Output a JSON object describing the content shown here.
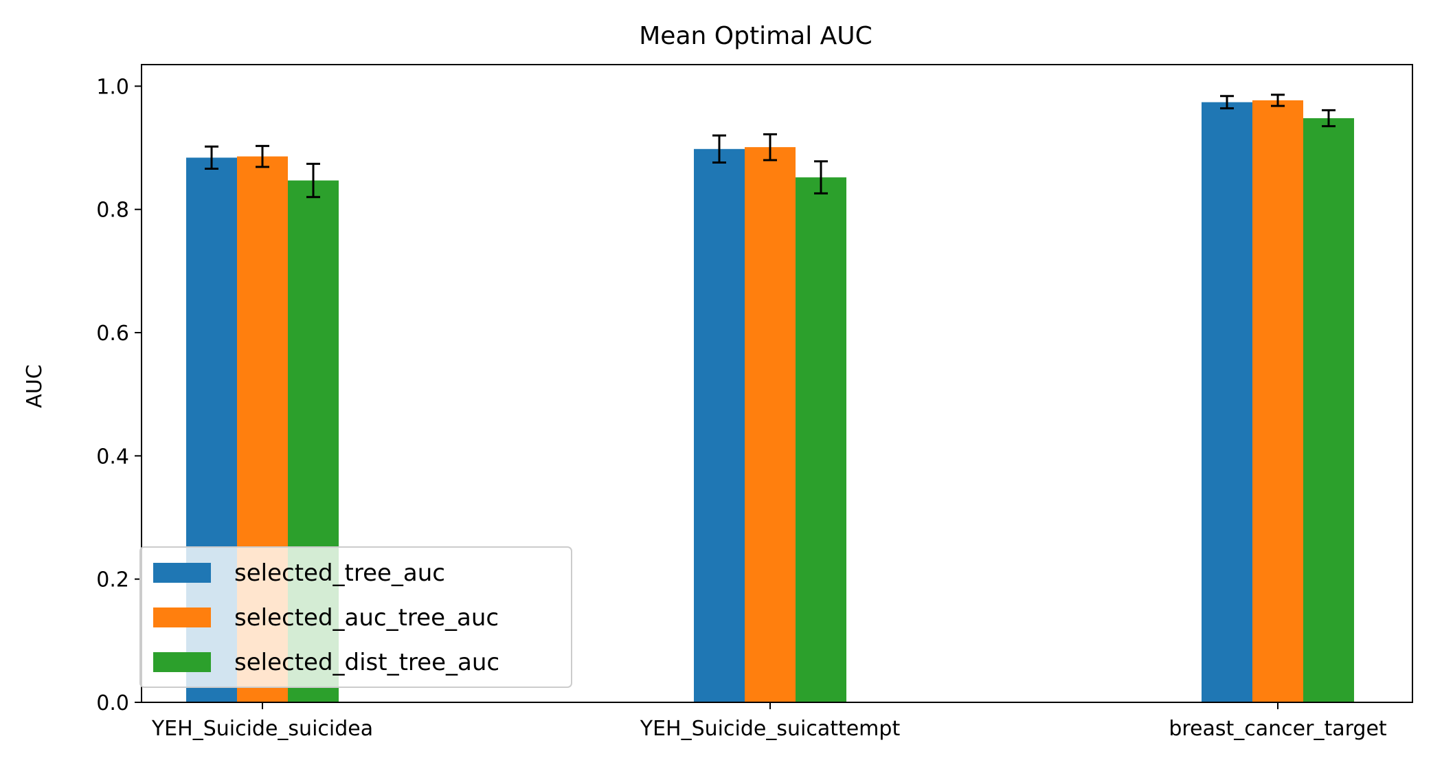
{
  "chart_data": {
    "type": "bar",
    "title": "Mean Optimal AUC",
    "xlabel": "",
    "ylabel": "AUC",
    "ylim": [
      0,
      1.035
    ],
    "yticks": [
      0.0,
      0.2,
      0.4,
      0.6,
      0.8,
      1.0
    ],
    "ytick_labels": [
      "0.0",
      "0.2",
      "0.4",
      "0.6",
      "0.8",
      "1.0"
    ],
    "categories": [
      "YEH_Suicide_suicidea",
      "YEH_Suicide_suicattempt",
      "breast_cancer_target"
    ],
    "series": [
      {
        "name": "selected_tree_auc",
        "color": "#1f77b4",
        "values": [
          0.884,
          0.898,
          0.974
        ],
        "errors": [
          0.018,
          0.022,
          0.01
        ]
      },
      {
        "name": "selected_auc_tree_auc",
        "color": "#ff7f0e",
        "values": [
          0.886,
          0.901,
          0.977
        ],
        "errors": [
          0.017,
          0.021,
          0.009
        ]
      },
      {
        "name": "selected_dist_tree_auc",
        "color": "#2ca02c",
        "values": [
          0.847,
          0.852,
          0.948
        ],
        "errors": [
          0.027,
          0.026,
          0.013
        ]
      }
    ],
    "grid": false,
    "legend_position": "lower-left"
  }
}
